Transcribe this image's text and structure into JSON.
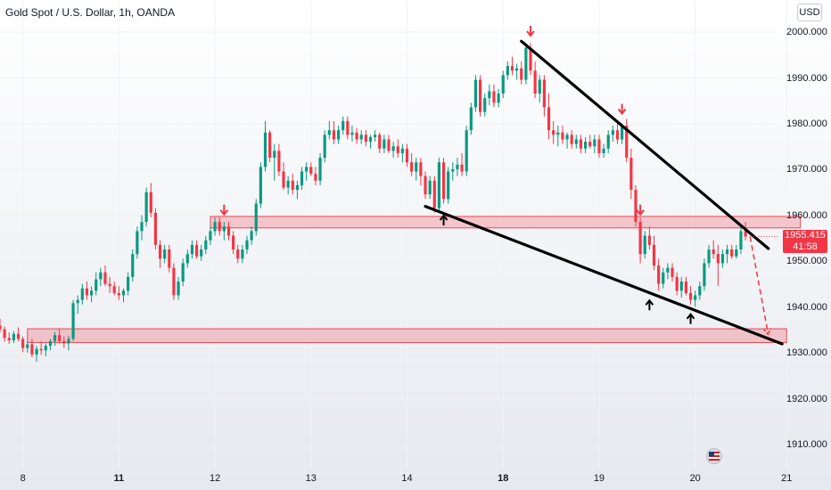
{
  "chart_data": {
    "type": "candlestick",
    "title": "Gold Spot / U.S. Dollar, 1h, OANDA",
    "currency": "USD",
    "ylim": [
      1905,
      2007
    ],
    "x_range": [
      0,
      170
    ],
    "y_ticks": [
      "2000.000",
      "1990.000",
      "1980.000",
      "1970.000",
      "1960.000",
      "1950.000",
      "1940.000",
      "1930.000",
      "1920.000",
      "1910.000"
    ],
    "x_ticks": [
      {
        "label": "8",
        "x": 5,
        "bold": false
      },
      {
        "label": "11",
        "x": 26,
        "bold": true
      },
      {
        "label": "12",
        "x": 47,
        "bold": false
      },
      {
        "label": "13",
        "x": 68,
        "bold": false
      },
      {
        "label": "14",
        "x": 89,
        "bold": false
      },
      {
        "label": "18",
        "x": 110,
        "bold": true
      },
      {
        "label": "19",
        "x": 131,
        "bold": false
      },
      {
        "label": "20",
        "x": 152,
        "bold": false
      },
      {
        "label": "21",
        "x": 172,
        "bold": false
      }
    ],
    "last_price": "1955.415",
    "countdown": "41:58",
    "candles": [
      [
        0,
        1936,
        1937.5,
        1934.5,
        1935.2
      ],
      [
        1,
        1935.2,
        1935.8,
        1932.5,
        1933.3
      ],
      [
        2,
        1933.3,
        1934.5,
        1932,
        1932.8
      ],
      [
        3,
        1932.8,
        1934.8,
        1932.2,
        1934.2
      ],
      [
        4,
        1934.2,
        1935.6,
        1932.6,
        1933.1
      ],
      [
        5,
        1933.1,
        1933.6,
        1930.2,
        1931.1
      ],
      [
        6,
        1931.1,
        1932.6,
        1930.1,
        1931.9
      ],
      [
        7,
        1931.9,
        1933.1,
        1929.1,
        1929.7
      ],
      [
        8,
        1929.7,
        1931.6,
        1928.1,
        1930.9
      ],
      [
        9,
        1930.9,
        1932.6,
        1929.6,
        1930.6
      ],
      [
        10,
        1930.6,
        1932.1,
        1929.3,
        1931.6
      ],
      [
        11,
        1931.6,
        1933.1,
        1930.6,
        1932.6
      ],
      [
        12,
        1932.6,
        1934.6,
        1931.6,
        1933.9
      ],
      [
        13,
        1933.9,
        1935.2,
        1932.1,
        1932.6
      ],
      [
        14,
        1932.6,
        1933.6,
        1931.1,
        1932.1
      ],
      [
        15,
        1932.1,
        1933.8,
        1930.6,
        1933.1
      ],
      [
        16,
        1933.1,
        1941.6,
        1932.6,
        1940.9
      ],
      [
        17,
        1940.9,
        1942.6,
        1938.6,
        1941.6
      ],
      [
        18,
        1941.6,
        1945.1,
        1940.6,
        1944.1
      ],
      [
        19,
        1944.1,
        1945.6,
        1941.6,
        1942.6
      ],
      [
        20,
        1942.6,
        1944.6,
        1941.1,
        1943.6
      ],
      [
        21,
        1943.6,
        1947.6,
        1942.6,
        1946.1
      ],
      [
        22,
        1946.1,
        1948.6,
        1944.6,
        1947.6
      ],
      [
        23,
        1947.6,
        1949.1,
        1944.6,
        1945.1
      ],
      [
        24,
        1945.1,
        1946.6,
        1943.1,
        1944.6
      ],
      [
        25,
        1944.6,
        1945.6,
        1942.6,
        1943.1
      ],
      [
        26,
        1943.1,
        1944.6,
        1941.6,
        1942.6
      ],
      [
        27,
        1942.6,
        1944.1,
        1941.1,
        1943.6
      ],
      [
        28,
        1943.6,
        1947.6,
        1942.6,
        1946.6
      ],
      [
        29,
        1946.6,
        1952.6,
        1945.6,
        1951.6
      ],
      [
        30,
        1951.6,
        1957.6,
        1950.6,
        1956.6
      ],
      [
        31,
        1956.6,
        1960.1,
        1954.6,
        1958.6
      ],
      [
        32,
        1958.6,
        1966.1,
        1957.6,
        1965.1
      ],
      [
        33,
        1965.1,
        1967.1,
        1959.6,
        1960.6
      ],
      [
        34,
        1960.6,
        1961.6,
        1952.6,
        1953.6
      ],
      [
        35,
        1953.6,
        1954.6,
        1948.6,
        1950.6
      ],
      [
        36,
        1950.6,
        1953.6,
        1949.6,
        1952.6
      ],
      [
        37,
        1952.6,
        1953.6,
        1947.6,
        1948.6
      ],
      [
        38,
        1948.6,
        1949.6,
        1941.6,
        1942.6
      ],
      [
        39,
        1942.6,
        1946.6,
        1941.6,
        1945.6
      ],
      [
        40,
        1945.6,
        1950.6,
        1944.6,
        1949.6
      ],
      [
        41,
        1949.6,
        1952.6,
        1948.6,
        1951.6
      ],
      [
        42,
        1951.6,
        1954.6,
        1950.6,
        1953.6
      ],
      [
        43,
        1953.6,
        1954.6,
        1950.6,
        1951.1
      ],
      [
        44,
        1951.1,
        1953.6,
        1950.1,
        1952.6
      ],
      [
        45,
        1952.6,
        1955.6,
        1951.6,
        1954.6
      ],
      [
        46,
        1954.6,
        1957.6,
        1953.6,
        1956.6
      ],
      [
        47,
        1956.6,
        1959.6,
        1955.6,
        1958.6
      ],
      [
        48,
        1958.6,
        1959.6,
        1955.6,
        1956.6
      ],
      [
        49,
        1956.6,
        1958.6,
        1954.6,
        1957.6
      ],
      [
        50,
        1957.6,
        1958.6,
        1954.6,
        1955.6
      ],
      [
        51,
        1955.6,
        1956.6,
        1951.6,
        1952.6
      ],
      [
        52,
        1952.6,
        1953.6,
        1949.6,
        1950.6
      ],
      [
        53,
        1950.6,
        1953.6,
        1949.6,
        1952.6
      ],
      [
        54,
        1952.6,
        1955.6,
        1951.6,
        1954.6
      ],
      [
        55,
        1954.6,
        1957.6,
        1953.6,
        1956.6
      ],
      [
        56,
        1956.6,
        1963.6,
        1955.6,
        1962.6
      ],
      [
        57,
        1962.6,
        1971.6,
        1961.6,
        1970.6
      ],
      [
        58,
        1970.6,
        1980.6,
        1969.6,
        1978.1
      ],
      [
        59,
        1978.1,
        1978.6,
        1971.6,
        1972.6
      ],
      [
        60,
        1972.6,
        1975.6,
        1967.6,
        1974.1
      ],
      [
        61,
        1974.1,
        1975.6,
        1968.6,
        1969.6
      ],
      [
        62,
        1969.6,
        1971.6,
        1965.6,
        1966.1
      ],
      [
        63,
        1966.1,
        1968.6,
        1964.6,
        1967.6
      ],
      [
        64,
        1967.6,
        1969.1,
        1964.6,
        1965.6
      ],
      [
        65,
        1965.6,
        1967.6,
        1963.6,
        1966.6
      ],
      [
        66,
        1966.6,
        1970.6,
        1965.6,
        1969.6
      ],
      [
        67,
        1969.6,
        1971.6,
        1967.6,
        1970.6
      ],
      [
        68,
        1970.6,
        1971.6,
        1968.6,
        1969.1
      ],
      [
        69,
        1969.1,
        1970.6,
        1966.6,
        1967.6
      ],
      [
        70,
        1967.6,
        1973.6,
        1966.6,
        1972.6
      ],
      [
        71,
        1972.6,
        1978.6,
        1971.6,
        1977.6
      ],
      [
        72,
        1977.6,
        1980.6,
        1976.6,
        1978.6
      ],
      [
        73,
        1978.6,
        1980.6,
        1975.6,
        1976.6
      ],
      [
        74,
        1976.6,
        1979.6,
        1975.6,
        1978.6
      ],
      [
        75,
        1978.6,
        1981.6,
        1977.6,
        1980.6
      ],
      [
        76,
        1980.6,
        1981.6,
        1976.6,
        1977.6
      ],
      [
        77,
        1977.6,
        1979.6,
        1976.1,
        1978.1
      ],
      [
        78,
        1978.1,
        1979.1,
        1975.6,
        1976.6
      ],
      [
        79,
        1976.6,
        1978.6,
        1975.6,
        1977.6
      ],
      [
        80,
        1977.6,
        1978.6,
        1975.1,
        1976.1
      ],
      [
        81,
        1976.1,
        1977.6,
        1974.6,
        1977.1
      ],
      [
        82,
        1977.1,
        1978.6,
        1976.1,
        1977.6
      ],
      [
        83,
        1977.6,
        1978.1,
        1973.6,
        1974.6
      ],
      [
        84,
        1974.6,
        1977.6,
        1973.6,
        1976.6
      ],
      [
        85,
        1976.6,
        1977.6,
        1973.6,
        1974.1
      ],
      [
        86,
        1974.1,
        1976.1,
        1972.6,
        1975.1
      ],
      [
        87,
        1975.1,
        1976.6,
        1972.6,
        1973.6
      ],
      [
        88,
        1973.6,
        1975.6,
        1971.6,
        1974.6
      ],
      [
        89,
        1974.6,
        1975.6,
        1970.6,
        1971.6
      ],
      [
        90,
        1971.6,
        1973.6,
        1968.6,
        1969.6
      ],
      [
        91,
        1969.6,
        1972.6,
        1967.6,
        1971.6
      ],
      [
        92,
        1971.6,
        1972.6,
        1966.6,
        1968.6
      ],
      [
        93,
        1968.6,
        1969.6,
        1963.6,
        1964.6
      ],
      [
        94,
        1964.6,
        1968.6,
        1963.6,
        1967.6
      ],
      [
        95,
        1967.6,
        1968.6,
        1960.6,
        1961.6
      ],
      [
        96,
        1961.6,
        1972.6,
        1960.6,
        1971.6
      ],
      [
        97,
        1971.6,
        1972.6,
        1962.6,
        1963.6
      ],
      [
        98,
        1963.6,
        1970.6,
        1962.6,
        1969.6
      ],
      [
        99,
        1969.6,
        1971.6,
        1967.6,
        1970.1
      ],
      [
        100,
        1970.1,
        1972.6,
        1968.6,
        1971.1
      ],
      [
        101,
        1971.1,
        1973.6,
        1968.6,
        1969.6
      ],
      [
        102,
        1969.6,
        1979.6,
        1968.6,
        1978.6
      ],
      [
        103,
        1978.6,
        1984.6,
        1977.6,
        1983.6
      ],
      [
        104,
        1983.6,
        1990.6,
        1982.6,
        1989.6
      ],
      [
        105,
        1989.6,
        1990.6,
        1981.6,
        1982.6
      ],
      [
        106,
        1982.6,
        1986.6,
        1981.6,
        1985.6
      ],
      [
        107,
        1985.6,
        1988.6,
        1984.1,
        1987.1
      ],
      [
        108,
        1987.1,
        1988.6,
        1983.6,
        1984.6
      ],
      [
        109,
        1984.6,
        1987.6,
        1983.6,
        1986.6
      ],
      [
        110,
        1986.6,
        1991.6,
        1985.6,
        1990.6
      ],
      [
        111,
        1990.6,
        1993.6,
        1989.6,
        1992.6
      ],
      [
        112,
        1992.6,
        1994.6,
        1990.6,
        1991.6
      ],
      [
        113,
        1991.6,
        1993.1,
        1989.6,
        1992.1
      ],
      [
        114,
        1992.1,
        1993.6,
        1988.6,
        1989.6
      ],
      [
        115,
        1989.6,
        1997.6,
        1988.6,
        1996.6
      ],
      [
        116,
        1996.6,
        1997.6,
        1990.6,
        1991.6
      ],
      [
        117,
        1991.6,
        1993.6,
        1985.6,
        1986.6
      ],
      [
        118,
        1986.6,
        1990.6,
        1984.6,
        1989.6
      ],
      [
        119,
        1989.6,
        1990.6,
        1981.6,
        1983.6
      ],
      [
        120,
        1983.6,
        1986.6,
        1976.6,
        1978.6
      ],
      [
        121,
        1978.6,
        1980.6,
        1975.6,
        1977.6
      ],
      [
        122,
        1977.6,
        1979.6,
        1975.1,
        1978.1
      ],
      [
        123,
        1978.1,
        1979.6,
        1975.6,
        1976.6
      ],
      [
        124,
        1976.6,
        1978.1,
        1974.6,
        1977.6
      ],
      [
        125,
        1977.6,
        1978.6,
        1974.6,
        1975.6
      ],
      [
        126,
        1975.6,
        1977.6,
        1974.6,
        1976.6
      ],
      [
        127,
        1976.6,
        1977.6,
        1973.6,
        1974.6
      ],
      [
        128,
        1974.6,
        1977.1,
        1973.6,
        1976.1
      ],
      [
        129,
        1976.1,
        1977.6,
        1974.6,
        1975.1
      ],
      [
        130,
        1975.1,
        1977.6,
        1973.6,
        1976.6
      ],
      [
        131,
        1976.6,
        1977.6,
        1972.6,
        1973.6
      ],
      [
        132,
        1973.6,
        1975.6,
        1972.6,
        1974.6
      ],
      [
        133,
        1974.6,
        1978.6,
        1973.6,
        1977.6
      ],
      [
        134,
        1977.6,
        1979.6,
        1976.1,
        1978.6
      ],
      [
        135,
        1978.6,
        1980.6,
        1975.6,
        1976.6
      ],
      [
        136,
        1976.6,
        1980.1,
        1975.6,
        1979.6
      ],
      [
        137,
        1979.6,
        1981.1,
        1971.6,
        1972.6
      ],
      [
        138,
        1972.6,
        1974.6,
        1963.6,
        1965.6
      ],
      [
        139,
        1965.6,
        1966.6,
        1957.6,
        1958.6
      ],
      [
        140,
        1958.6,
        1959.6,
        1949.6,
        1951.6
      ],
      [
        141,
        1951.6,
        1956.6,
        1950.6,
        1955.6
      ],
      [
        142,
        1955.6,
        1957.6,
        1952.6,
        1953.6
      ],
      [
        143,
        1953.6,
        1955.6,
        1948.1,
        1949.1
      ],
      [
        144,
        1949.1,
        1950.6,
        1943.6,
        1945.1
      ],
      [
        145,
        1945.1,
        1948.6,
        1944.1,
        1947.6
      ],
      [
        146,
        1947.6,
        1949.6,
        1946.1,
        1948.6
      ],
      [
        147,
        1948.6,
        1949.6,
        1945.6,
        1946.6
      ],
      [
        148,
        1946.6,
        1947.6,
        1942.6,
        1943.6
      ],
      [
        149,
        1943.6,
        1946.6,
        1942.1,
        1945.6
      ],
      [
        150,
        1945.6,
        1946.6,
        1942.6,
        1943.1
      ],
      [
        151,
        1943.1,
        1944.6,
        1940.6,
        1941.6
      ],
      [
        152,
        1941.6,
        1943.6,
        1940.1,
        1942.6
      ],
      [
        153,
        1942.6,
        1945.6,
        1941.6,
        1944.6
      ],
      [
        154,
        1944.6,
        1950.6,
        1943.6,
        1949.6
      ],
      [
        155,
        1949.6,
        1953.6,
        1948.6,
        1952.6
      ],
      [
        156,
        1952.6,
        1954.6,
        1950.6,
        1951.6
      ],
      [
        157,
        1951.6,
        1953.6,
        1944.6,
        1949.6
      ],
      [
        158,
        1949.6,
        1952.6,
        1948.6,
        1951.6
      ],
      [
        159,
        1951.6,
        1953.6,
        1949.6,
        1952.6
      ],
      [
        160,
        1952.6,
        1953.6,
        1950.6,
        1951.1
      ],
      [
        161,
        1951.1,
        1953.6,
        1950.6,
        1952.6
      ],
      [
        162,
        1952.6,
        1957.6,
        1951.6,
        1956.6
      ],
      [
        163,
        1956.6,
        1958.6,
        1954.6,
        1955.4
      ]
    ],
    "trendlines": [
      {
        "name": "resistance",
        "from": [
          114,
          1998
        ],
        "to": [
          168,
          1952.8
        ]
      },
      {
        "name": "support",
        "from": [
          93,
          1962
        ],
        "to": [
          171,
          1932
        ]
      }
    ],
    "zones": [
      {
        "name": "resistance-zone",
        "x_from": 46,
        "x_to": 175,
        "y_low": 1957.3,
        "y_high": 1959.8
      },
      {
        "name": "support-zone",
        "x_from": 6,
        "x_to": 172,
        "y_low": 1932.3,
        "y_high": 1935.3
      }
    ],
    "markers": [
      {
        "type": "down",
        "x": 49,
        "y": 1961.2
      },
      {
        "type": "down",
        "x": 116,
        "y": 2000.2
      },
      {
        "type": "down",
        "x": 136,
        "y": 1983.2
      },
      {
        "type": "down",
        "x": 140,
        "y": 1961.2
      },
      {
        "type": "up",
        "x": 97,
        "y": 1959.0
      },
      {
        "type": "up",
        "x": 142,
        "y": 1940.5
      },
      {
        "type": "up",
        "x": 151,
        "y": 1937.5
      }
    ],
    "projection": {
      "from": [
        164,
        1955.4
      ],
      "to": [
        168,
        1934
      ]
    }
  }
}
